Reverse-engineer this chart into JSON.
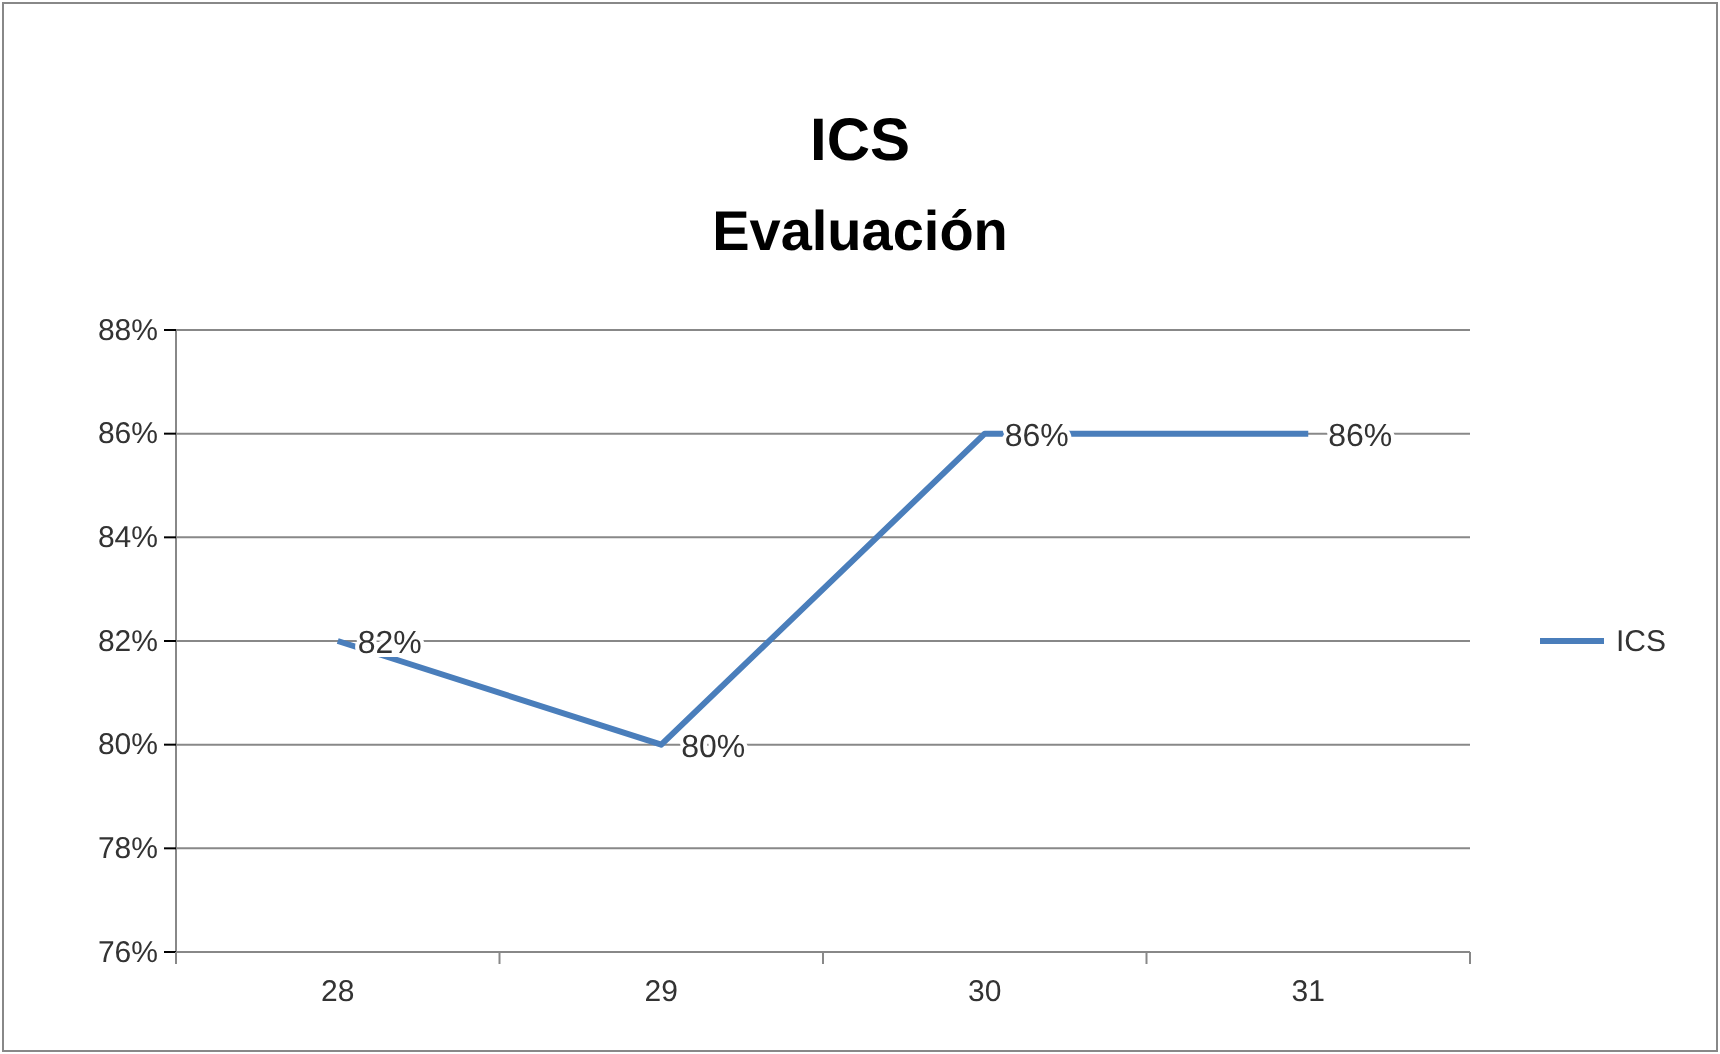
{
  "chart_data": {
    "type": "line",
    "title": "ICS",
    "subtitle": "Evaluación",
    "categories": [
      "28",
      "29",
      "30",
      "31"
    ],
    "series": [
      {
        "name": "ICS",
        "color": "#4a7ebb",
        "values": [
          82,
          80,
          86,
          86
        ],
        "value_labels": [
          "82%",
          "80%",
          "86%",
          "86%"
        ]
      }
    ],
    "ylim": [
      76,
      88
    ],
    "yticks": [
      {
        "value": 76,
        "label": "76%"
      },
      {
        "value": 78,
        "label": "78%"
      },
      {
        "value": 80,
        "label": "80%"
      },
      {
        "value": 82,
        "label": "82%"
      },
      {
        "value": 84,
        "label": "84%"
      },
      {
        "value": 86,
        "label": "86%"
      },
      {
        "value": 88,
        "label": "88%"
      }
    ],
    "grid": "y",
    "legend": "right",
    "marker": "none",
    "line_style": "solid"
  }
}
